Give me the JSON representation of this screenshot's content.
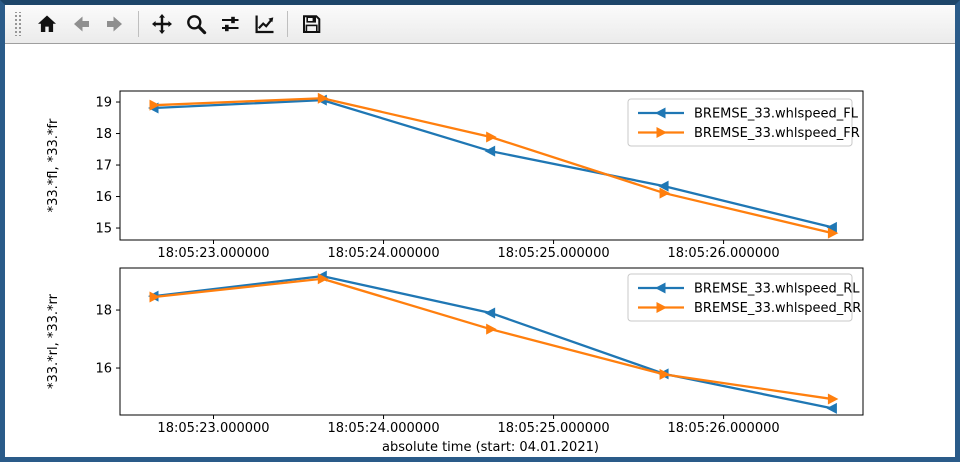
{
  "toolbar": {
    "buttons": [
      {
        "name": "home",
        "enabled": true
      },
      {
        "name": "back",
        "enabled": false
      },
      {
        "name": "forward",
        "enabled": false
      },
      {
        "name": "pan",
        "enabled": true
      },
      {
        "name": "zoom",
        "enabled": true
      },
      {
        "name": "configure-subplots",
        "enabled": true
      },
      {
        "name": "customize",
        "enabled": true
      },
      {
        "name": "save",
        "enabled": true
      }
    ],
    "separators_after": [
      "forward",
      "customize"
    ]
  },
  "colors": {
    "window_border": "#2a5b89",
    "series_blue": "#1f77b4",
    "series_orange": "#ff7f0e",
    "toolbar_bg": "#f0f0f0",
    "axis_color": "#000000"
  },
  "chart_data": [
    {
      "type": "line",
      "ylabel": "*33.*fl, *33.*fr",
      "x_unit": "seconds after 18:05 (absolute time)",
      "x": [
        22.65,
        23.64,
        24.63,
        25.65,
        26.64
      ],
      "series": [
        {
          "name": "BREMSE_33.whlspeed_FL",
          "color": "#1f77b4",
          "marker": "triangle-left",
          "values": [
            18.81,
            19.06,
            17.44,
            16.33,
            15.02
          ]
        },
        {
          "name": "BREMSE_33.whlspeed_FR",
          "color": "#ff7f0e",
          "marker": "triangle-right",
          "values": [
            18.9,
            19.12,
            17.89,
            16.11,
            14.84
          ]
        }
      ],
      "xlim": [
        22.45,
        26.82
      ],
      "ylim": [
        14.62,
        19.35
      ],
      "xticks": [
        {
          "v": 23,
          "label": "18:05:23.000000"
        },
        {
          "v": 24,
          "label": "18:05:24.000000"
        },
        {
          "v": 25,
          "label": "18:05:25.000000"
        },
        {
          "v": 26,
          "label": "18:05:26.000000"
        }
      ],
      "yticks": [
        {
          "v": 15,
          "label": "15"
        },
        {
          "v": 16,
          "label": "16"
        },
        {
          "v": 17,
          "label": "17"
        },
        {
          "v": 18,
          "label": "18"
        },
        {
          "v": 19,
          "label": "19"
        }
      ],
      "grid": false,
      "legend_position": "upper right"
    },
    {
      "type": "line",
      "ylabel": "*33.*rl, *33.*rr",
      "xlabel": "absolute time (start: 04.01.2021)",
      "x_unit": "seconds after 18:05 (absolute time)",
      "x": [
        22.65,
        23.64,
        24.63,
        25.65,
        26.64
      ],
      "series": [
        {
          "name": "BREMSE_33.whlspeed_RL",
          "color": "#1f77b4",
          "marker": "triangle-left",
          "values": [
            18.48,
            19.17,
            17.9,
            15.8,
            14.61
          ]
        },
        {
          "name": "BREMSE_33.whlspeed_RR",
          "color": "#ff7f0e",
          "marker": "triangle-right",
          "values": [
            18.45,
            19.08,
            17.34,
            15.78,
            14.93
          ]
        }
      ],
      "xlim": [
        22.45,
        26.82
      ],
      "ylim": [
        14.38,
        19.45
      ],
      "xticks": [
        {
          "v": 23,
          "label": "18:05:23.000000"
        },
        {
          "v": 24,
          "label": "18:05:24.000000"
        },
        {
          "v": 25,
          "label": "18:05:25.000000"
        },
        {
          "v": 26,
          "label": "18:05:26.000000"
        }
      ],
      "yticks": [
        {
          "v": 16,
          "label": "16"
        },
        {
          "v": 18,
          "label": "18"
        }
      ],
      "grid": false,
      "legend_position": "upper right"
    }
  ]
}
